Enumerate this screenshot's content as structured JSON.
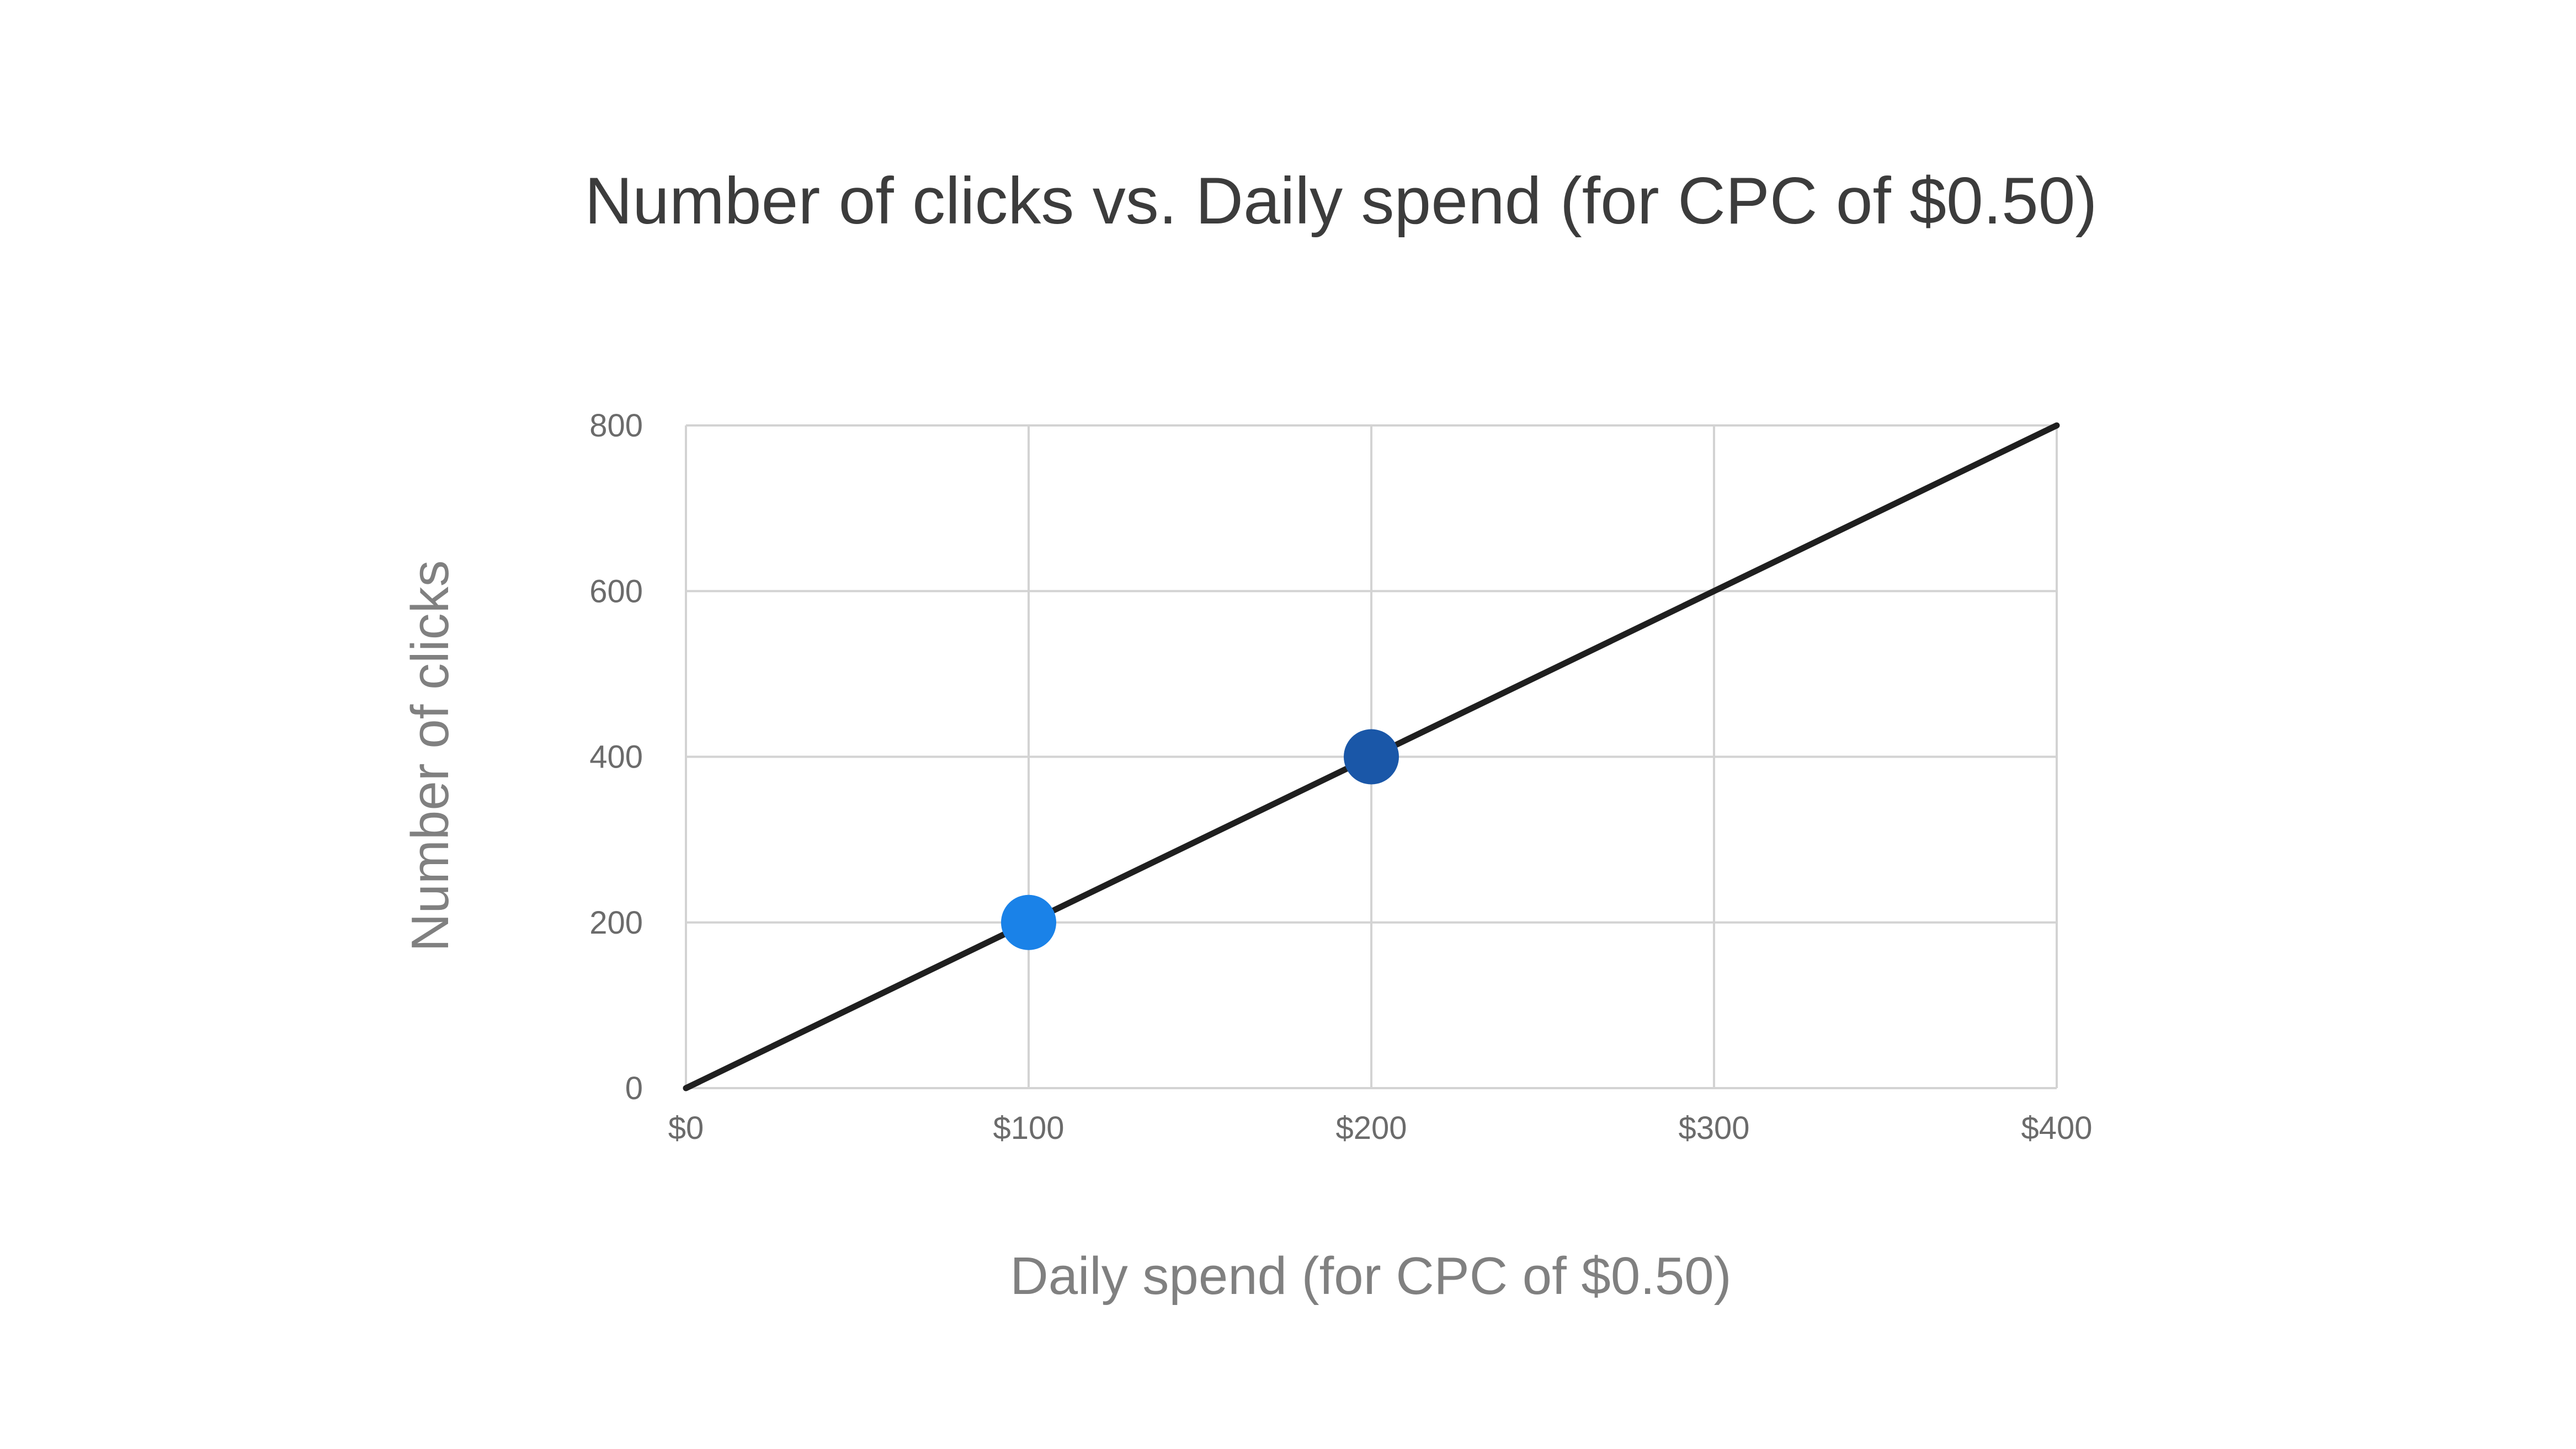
{
  "chart_data": {
    "type": "line",
    "title": "Number of clicks vs. Daily spend (for CPC of $0.50)",
    "xlabel": "Daily spend (for CPC of $0.50)",
    "ylabel": "Number of clicks",
    "xlim": [
      0,
      400
    ],
    "ylim": [
      0,
      800
    ],
    "x_ticks": [
      0,
      100,
      200,
      300,
      400
    ],
    "x_tick_labels": [
      "$0",
      "$100",
      "$200",
      "$300",
      "$400"
    ],
    "y_ticks": [
      0,
      200,
      400,
      600,
      800
    ],
    "y_tick_labels": [
      "0",
      "200",
      "400",
      "600",
      "800"
    ],
    "grid": true,
    "series": [
      {
        "x": [
          0,
          400
        ],
        "y": [
          0,
          800
        ],
        "color": "#1f1f1f"
      }
    ],
    "points": [
      {
        "x": 100,
        "y": 200,
        "color": "#1a82e8"
      },
      {
        "x": 200,
        "y": 400,
        "color": "#1a57a8"
      }
    ]
  }
}
